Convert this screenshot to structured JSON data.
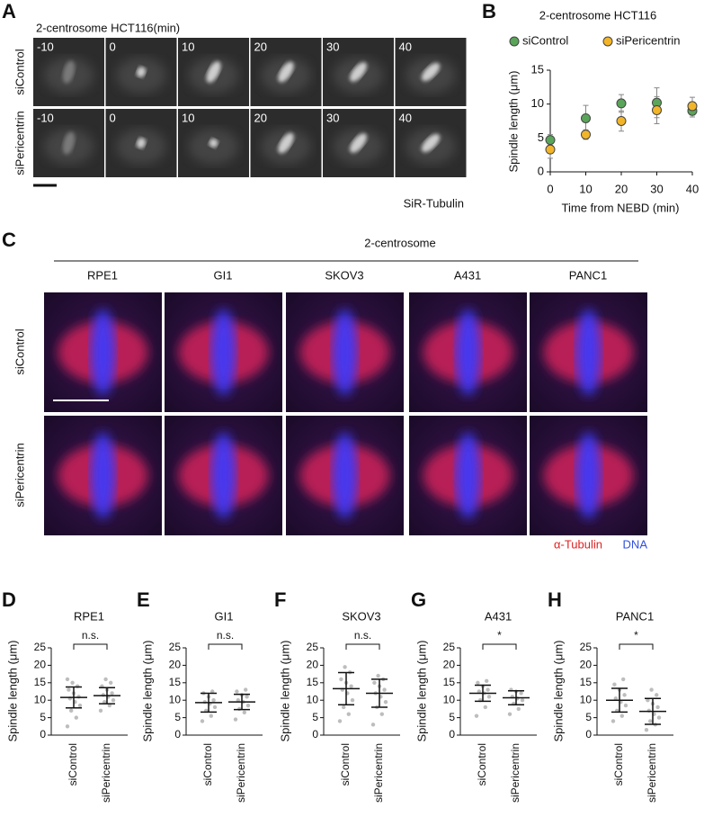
{
  "panel_labels": [
    "A",
    "B",
    "C",
    "D",
    "E",
    "F",
    "G",
    "H"
  ],
  "live_imaging": {
    "title": "2-centrosome HCT116(min)",
    "times": [
      "-10",
      "0",
      "10",
      "20",
      "30",
      "40"
    ],
    "rows": [
      "siControl",
      "siPericentrin"
    ],
    "stain": "SiR-Tubulin"
  },
  "fixed_imaging": {
    "title": "2-centrosome",
    "cell_lines": [
      "RPE1",
      "GI1",
      "SKOV3",
      "A431",
      "PANC1"
    ],
    "rows": [
      "siControl",
      "siPericentrin"
    ],
    "stain": [
      "α-Tubulin",
      "DNA"
    ]
  },
  "chart_data": [
    {
      "type": "scatter",
      "title": "2-centrosome HCT116",
      "x": [
        0,
        10,
        20,
        30,
        40
      ],
      "series": [
        {
          "name": "siControl",
          "color": "#5aa55a",
          "values": [
            4.7,
            7.9,
            10.1,
            10.2,
            9.0
          ],
          "errors": [
            0.8,
            1.9,
            1.3,
            2.2,
            0.9
          ]
        },
        {
          "name": "siPericentrin",
          "color": "#f2b52a",
          "values": [
            3.3,
            5.5,
            7.5,
            9.1,
            9.7
          ],
          "errors": [
            1.3,
            0.7,
            1.5,
            2.0,
            1.3
          ]
        }
      ],
      "xlim": [
        0,
        40
      ],
      "ylim": [
        0,
        15
      ],
      "xticks": [
        0,
        10,
        20,
        30,
        40
      ],
      "yticks": [
        0,
        5,
        10,
        15
      ],
      "xlabel": "Time from NEBD (min)",
      "ylabel": "Spindle length (μm)"
    },
    {
      "type": "dotplot",
      "title": "RPE1",
      "categories": [
        "siControl",
        "siPericentrin"
      ],
      "significance": "n.s.",
      "ylabel": "Spindle length (μm)",
      "ylim": [
        0,
        25
      ],
      "yticks": [
        0,
        5,
        10,
        15,
        20,
        25
      ],
      "groups": [
        {
          "mean": 10.8,
          "sd": 3.0,
          "points": [
            2.5,
            5,
            7,
            8.5,
            9.5,
            10.5,
            11,
            12,
            13,
            14,
            15,
            16
          ]
        },
        {
          "mean": 11.3,
          "sd": 2.3,
          "points": [
            7,
            8.5,
            9.5,
            10,
            11,
            11.5,
            12,
            13,
            14,
            15,
            16
          ]
        }
      ]
    },
    {
      "type": "dotplot",
      "title": "GI1",
      "categories": [
        "siControl",
        "siPericentrin"
      ],
      "significance": "n.s.",
      "ylabel": "Spindle length (μm)",
      "ylim": [
        0,
        25
      ],
      "yticks": [
        0,
        5,
        10,
        15,
        20,
        25
      ],
      "groups": [
        {
          "mean": 9.3,
          "sd": 2.7,
          "points": [
            4,
            5.5,
            7,
            8,
            9,
            9.5,
            10,
            11,
            12,
            12.5
          ]
        },
        {
          "mean": 9.5,
          "sd": 2.2,
          "points": [
            4.5,
            6.5,
            7.5,
            8.5,
            9.5,
            10,
            11,
            11.5,
            12.5,
            13
          ]
        }
      ]
    },
    {
      "type": "dotplot",
      "title": "SKOV3",
      "categories": [
        "siControl",
        "siPericentrin"
      ],
      "significance": "n.s.",
      "ylabel": "Spindle length (μm)",
      "ylim": [
        0,
        25
      ],
      "yticks": [
        0,
        5,
        10,
        15,
        20,
        25
      ],
      "groups": [
        {
          "mean": 13.3,
          "sd": 4.6,
          "points": [
            4,
            6,
            8,
            10,
            12,
            13,
            14,
            15,
            16,
            18,
            19.5
          ]
        },
        {
          "mean": 12.0,
          "sd": 4.0,
          "points": [
            3,
            6,
            8,
            9.5,
            11,
            12,
            13,
            14,
            15,
            16,
            17
          ]
        }
      ]
    },
    {
      "type": "dotplot",
      "title": "A431",
      "categories": [
        "siControl",
        "siPericentrin"
      ],
      "significance": "*",
      "ylabel": "Spindle length (μm)",
      "ylim": [
        0,
        25
      ],
      "yticks": [
        0,
        5,
        10,
        15,
        20,
        25
      ],
      "groups": [
        {
          "mean": 12.0,
          "sd": 2.3,
          "points": [
            5.5,
            8,
            10,
            11,
            12,
            12.5,
            13,
            14,
            15,
            15.5
          ]
        },
        {
          "mean": 10.7,
          "sd": 2.0,
          "points": [
            6,
            7.5,
            9,
            10,
            10.5,
            11,
            12,
            12.5,
            13
          ]
        }
      ]
    },
    {
      "type": "dotplot",
      "title": "PANC1",
      "categories": [
        "siControl",
        "siPericentrin"
      ],
      "significance": "*",
      "ylabel": "Spindle length (μm)",
      "ylim": [
        0,
        25
      ],
      "yticks": [
        0,
        5,
        10,
        15,
        20,
        25
      ],
      "groups": [
        {
          "mean": 10.0,
          "sd": 3.4,
          "points": [
            4,
            5.5,
            7,
            8.5,
            9.5,
            10.5,
            11.5,
            13,
            14.5,
            16
          ]
        },
        {
          "mean": 6.8,
          "sd": 3.7,
          "points": [
            1.5,
            3,
            4,
            5,
            6,
            7,
            8,
            9,
            10,
            11.5,
            13
          ]
        }
      ]
    }
  ]
}
